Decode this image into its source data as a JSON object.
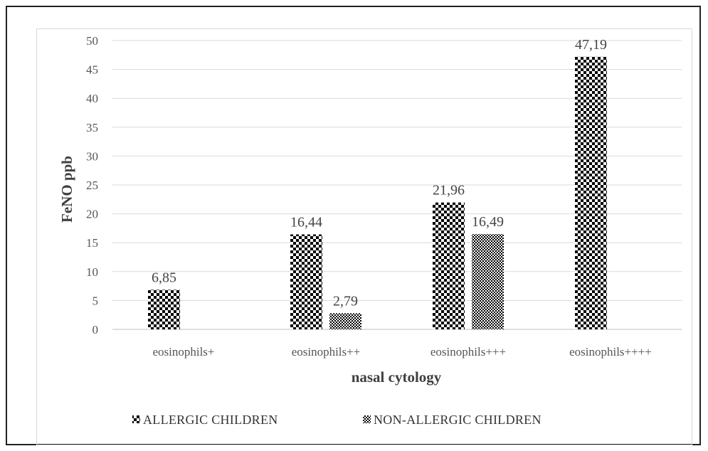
{
  "chart_data": {
    "type": "bar",
    "categories": [
      "eosinophils+",
      "eosinophils++",
      "eosinophils+++",
      "eosinophils++++"
    ],
    "series": [
      {
        "name": "ALLERGIC CHILDREN",
        "values": [
          6.85,
          16.44,
          21.96,
          47.19
        ],
        "labels": [
          "6,85",
          "16,44",
          "21,96",
          "47,19"
        ]
      },
      {
        "name": "NON-ALLERGIC CHILDREN",
        "values": [
          null,
          2.79,
          16.49,
          null
        ],
        "labels": [
          "",
          "2,79",
          "16,49",
          ""
        ]
      }
    ],
    "title": "",
    "xlabel": "nasal cytology",
    "ylabel": "FeNO ppb",
    "ylim": [
      0,
      50
    ],
    "yticks": [
      0,
      5,
      10,
      15,
      20,
      25,
      30,
      35,
      40,
      45,
      50
    ],
    "grid": true,
    "legend": "bottom"
  }
}
